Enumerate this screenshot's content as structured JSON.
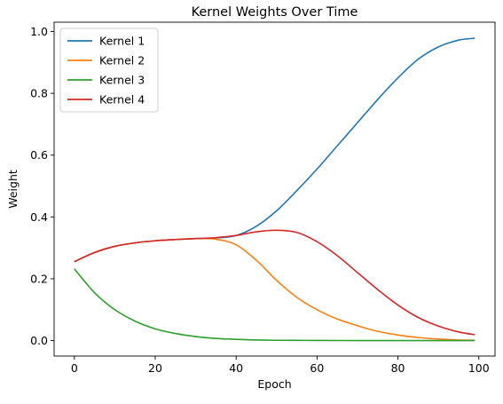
{
  "chart_data": {
    "type": "line",
    "title": "Kernel Weights Over Time",
    "xlabel": "Epoch",
    "ylabel": "Weight",
    "xlim": [
      -5,
      104
    ],
    "ylim": [
      -0.05,
      1.03
    ],
    "x_ticks": [
      0,
      20,
      40,
      60,
      80,
      100
    ],
    "y_ticks": [
      0.0,
      0.2,
      0.4,
      0.6,
      0.8,
      1.0
    ],
    "grid": false,
    "legend_position": "top-left",
    "x": [
      0,
      5,
      10,
      15,
      20,
      25,
      30,
      35,
      40,
      45,
      50,
      55,
      60,
      65,
      70,
      75,
      80,
      85,
      90,
      95,
      99
    ],
    "series": [
      {
        "name": "Kernel 1",
        "color": "#1f77b4",
        "values": [
          0.255,
          0.285,
          0.305,
          0.316,
          0.323,
          0.327,
          0.33,
          0.332,
          0.34,
          0.37,
          0.42,
          0.485,
          0.555,
          0.63,
          0.705,
          0.78,
          0.85,
          0.91,
          0.95,
          0.972,
          0.978
        ]
      },
      {
        "name": "Kernel 2",
        "color": "#ff7f0e",
        "values": [
          0.255,
          0.285,
          0.305,
          0.316,
          0.323,
          0.327,
          0.33,
          0.328,
          0.31,
          0.26,
          0.195,
          0.14,
          0.1,
          0.07,
          0.048,
          0.03,
          0.018,
          0.01,
          0.005,
          0.002,
          0.001
        ]
      },
      {
        "name": "Kernel 3",
        "color": "#2ca02c",
        "values": [
          0.232,
          0.155,
          0.1,
          0.063,
          0.038,
          0.023,
          0.013,
          0.007,
          0.004,
          0.002,
          0.001,
          0.0008,
          0.0005,
          0.0003,
          0.0002,
          0.0001,
          0.0001,
          0.0,
          0.0,
          0.0,
          0.0
        ]
      },
      {
        "name": "Kernel 4",
        "color": "#d62728",
        "values": [
          0.255,
          0.285,
          0.305,
          0.316,
          0.323,
          0.327,
          0.33,
          0.333,
          0.34,
          0.352,
          0.357,
          0.35,
          0.32,
          0.275,
          0.22,
          0.165,
          0.115,
          0.075,
          0.047,
          0.028,
          0.019
        ]
      }
    ]
  }
}
